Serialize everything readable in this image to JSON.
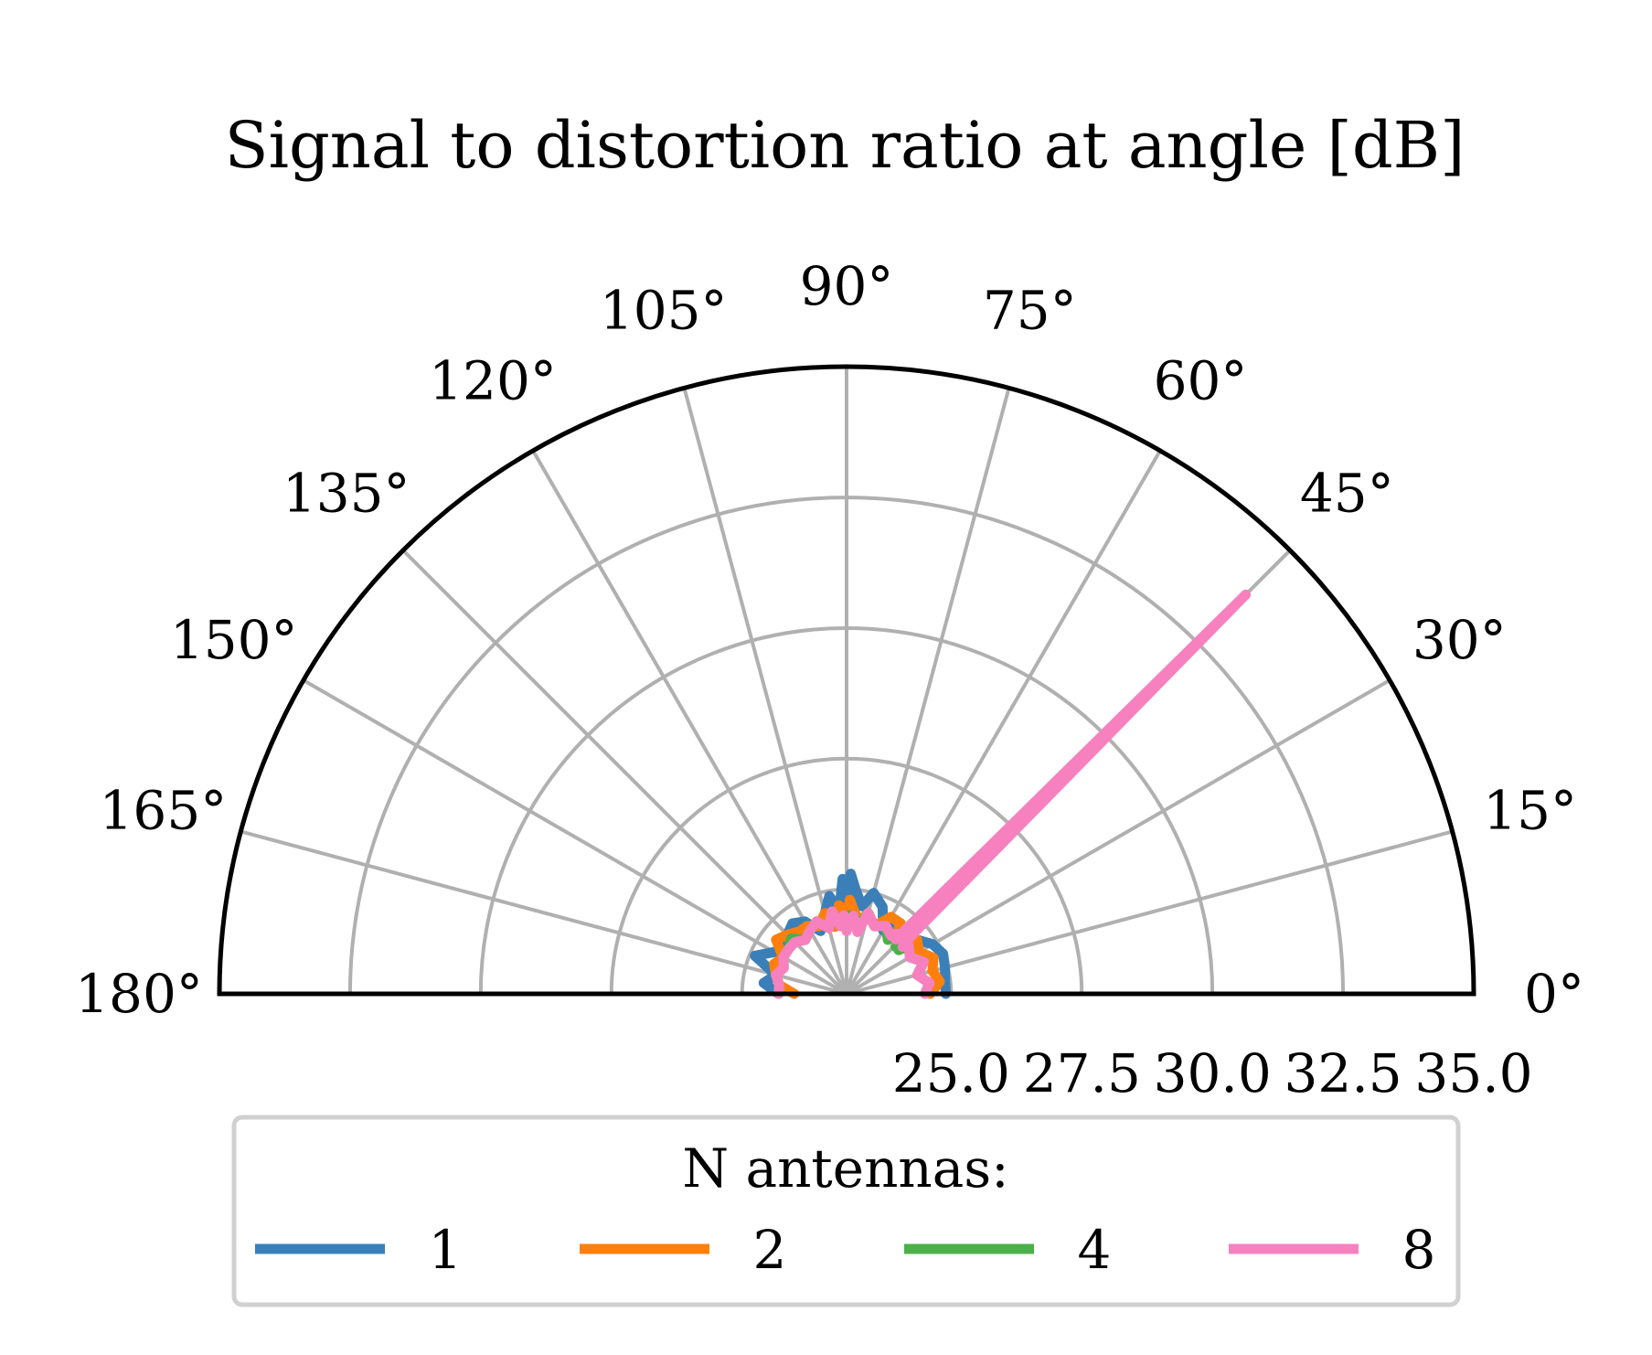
{
  "chart_data": {
    "type": "polar-line",
    "title": "Signal to distortion ratio at angle [dB]",
    "theta_range_deg": [
      0,
      180
    ],
    "r_range": [
      23.0,
      35.0
    ],
    "angle_ticks": [
      "0°",
      "15°",
      "30°",
      "45°",
      "60°",
      "75°",
      "90°",
      "105°",
      "120°",
      "135°",
      "150°",
      "165°",
      "180°"
    ],
    "radial_ticks": [
      25.0,
      27.5,
      30.0,
      32.5,
      35.0
    ],
    "radial_tick_labels": [
      "25.0",
      "27.5",
      "30.0",
      "32.5",
      "35.0"
    ],
    "grid": true,
    "legend": {
      "title": "N antennas:",
      "placement": "bottom-center",
      "columns": 4
    },
    "theta_deg": [
      0,
      7.5,
      15,
      22.5,
      30,
      37.5,
      40,
      42,
      44,
      45,
      46,
      48,
      50,
      52.5,
      60,
      67.5,
      75,
      80,
      85,
      88,
      90,
      92,
      95,
      100,
      105,
      112.5,
      120,
      127.5,
      135,
      142.5,
      150,
      157.5,
      165,
      172.5,
      180
    ],
    "series": [
      {
        "name": "1",
        "color": "#3b7fb8",
        "r": [
          24.9,
          24.9,
          24.95,
          25.0,
          24.9,
          24.7,
          24.6,
          24.5,
          24.7,
          24.5,
          24.5,
          24.6,
          24.6,
          24.7,
          24.4,
          24.8,
          25.0,
          24.7,
          25.0,
          25.3,
          24.8,
          25.2,
          24.6,
          24.9,
          24.6,
          24.3,
          24.6,
          24.7,
          24.6,
          24.5,
          24.6,
          24.9,
          24.4,
          24.6,
          24.3
        ]
      },
      {
        "name": "2",
        "color": "#ff7f0e",
        "r": [
          24.6,
          24.8,
          24.7,
          24.8,
          24.6,
          24.7,
          24.5,
          24.5,
          24.6,
          24.4,
          24.5,
          24.7,
          24.5,
          24.7,
          24.7,
          24.4,
          24.6,
          24.4,
          24.6,
          24.8,
          24.4,
          24.6,
          24.7,
          24.3,
          24.6,
          24.4,
          24.5,
          24.5,
          24.6,
          24.7,
          24.4,
          24.5,
          24.4,
          24.3,
          24.0
        ]
      },
      {
        "name": "4",
        "color": "#4daf4a",
        "r": [
          24.5,
          24.6,
          24.4,
          24.6,
          24.4,
          24.5,
          24.3,
          24.4,
          24.3,
          24.5,
          24.4,
          24.4,
          24.5,
          24.3,
          24.5,
          24.4,
          24.6,
          24.3,
          24.5,
          24.5,
          24.4,
          24.4,
          24.3,
          24.6,
          24.3,
          24.5,
          24.4,
          24.3,
          24.5,
          24.4,
          24.4,
          24.3,
          24.4,
          24.3,
          24.3
        ]
      },
      {
        "name": "8",
        "color": "#f781bf",
        "r": [
          24.5,
          24.6,
          24.4,
          24.6,
          24.4,
          24.5,
          24.4,
          24.7,
          27.0,
          33.8,
          26.5,
          24.4,
          24.5,
          24.4,
          24.5,
          24.4,
          24.6,
          24.2,
          24.5,
          24.4,
          24.2,
          24.5,
          24.3,
          24.6,
          24.3,
          24.5,
          24.4,
          24.3,
          24.4,
          24.4,
          24.4,
          24.3,
          24.4,
          24.3,
          24.3
        ]
      }
    ]
  }
}
